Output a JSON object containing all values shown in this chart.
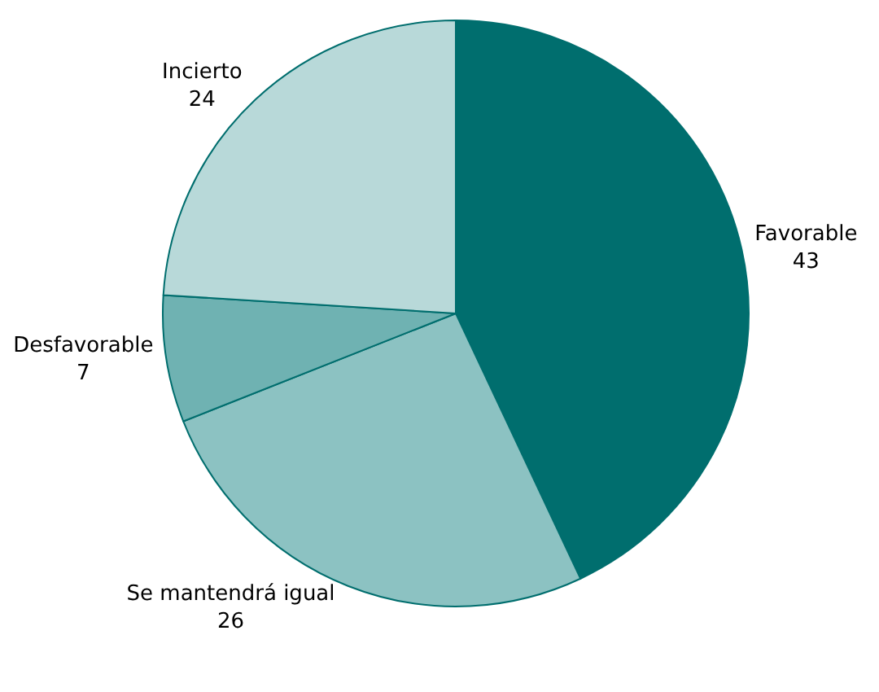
{
  "chart_data": {
    "type": "pie",
    "categories": [
      "Favorable",
      "Se mantendrá igual",
      "Desfavorable",
      "Incierto"
    ],
    "values": [
      43,
      26,
      7,
      24
    ],
    "colors": [
      "#006e6e",
      "#8cc2c2",
      "#6fb2b2",
      "#b8d9d9"
    ],
    "data_labels": true,
    "legend": false
  }
}
